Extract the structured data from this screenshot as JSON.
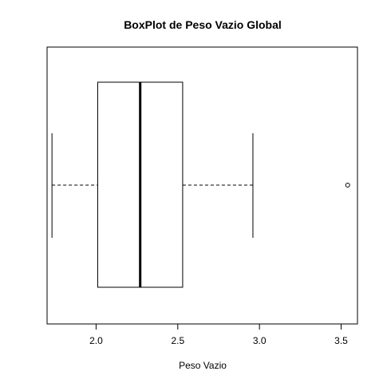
{
  "chart_data": {
    "type": "boxplot",
    "orientation": "horizontal",
    "title": "BoxPlot de Peso Vazio Global",
    "xlabel": "Peso Vazio",
    "ylabel": "",
    "xlim": [
      1.7,
      3.6
    ],
    "x_ticks": [
      "2.0",
      "2.5",
      "3.0",
      "3.5"
    ],
    "grid": false,
    "stats": {
      "whisker_low": 1.73,
      "q1": 2.01,
      "median": 2.27,
      "q3": 2.53,
      "whisker_high": 2.96,
      "outliers": [
        3.54
      ]
    }
  }
}
